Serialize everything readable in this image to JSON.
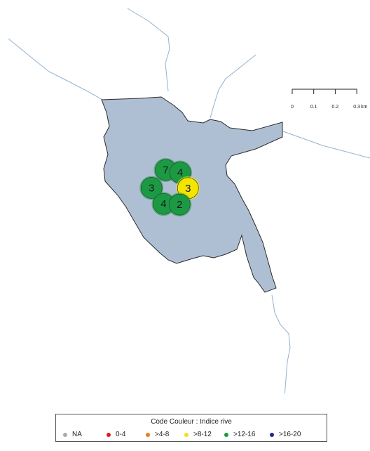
{
  "sites": [
    {
      "value": "7",
      "category": ">12-16",
      "lon_km": -0.005,
      "lat_km": 0.372
    },
    {
      "value": "4",
      "category": ">12-16",
      "lon_km": 0.191,
      "lat_km": 0.338
    },
    {
      "value": "3",
      "category": ">12-16",
      "lon_km": -0.198,
      "lat_km": 0.129
    },
    {
      "value": "3",
      "category": ">8-12",
      "lon_km": 0.298,
      "lat_km": 0.125
    },
    {
      "value": "4",
      "category": ">12-16",
      "lon_km": -0.034,
      "lat_km": -0.088
    },
    {
      "value": "2",
      "category": ">12-16",
      "lon_km": 0.184,
      "lat_km": -0.097
    }
  ],
  "scalebar": {
    "ticks": [
      "0",
      "0.1",
      "0.2",
      "0.3"
    ],
    "unit": "km"
  },
  "legend": {
    "title": "Code Couleur : Indice rive",
    "items": [
      {
        "label": "NA",
        "color": "#aaaaaa"
      },
      {
        "label": "0-4",
        "color": "#e41a1c"
      },
      {
        "label": ">4-8",
        "color": "#e5811f"
      },
      {
        "label": ">8-12",
        "color": "#f1e21b"
      },
      {
        "label": ">12-16",
        "color": "#1b9a43"
      },
      {
        "label": ">16-20",
        "color": "#1f2a8c"
      }
    ]
  },
  "colors": {
    "lake_fill": "#aebfd3",
    "lake_outline": "#2a2a2a",
    "river": "#93b1d0",
    "marker_green": "#1b9a43",
    "marker_yellow": "#f4e500"
  }
}
